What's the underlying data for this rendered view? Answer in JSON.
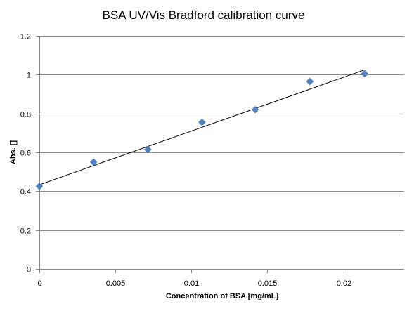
{
  "chart_data": {
    "type": "scatter",
    "title": "BSA UV/Vis Bradford calibration curve",
    "xlabel": "Concentration of BSA [mg/mL]",
    "ylabel": "Abs. []",
    "xlim": [
      0,
      0.024
    ],
    "ylim": [
      0,
      1.2
    ],
    "x_ticks": [
      0,
      0.005,
      0.01,
      0.015,
      0.02
    ],
    "x_tick_labels": [
      "0",
      "0.005",
      "0.01",
      "0.015",
      "0.02"
    ],
    "y_ticks": [
      0,
      0.2,
      0.4,
      0.6,
      0.8,
      1,
      1.2
    ],
    "y_tick_labels": [
      "0",
      "0.2",
      "0.4",
      "0.6",
      "0.8",
      "1",
      "1.2"
    ],
    "grid": "horizontal major gridlines",
    "legend": "none",
    "marker": "diamond",
    "colors": {
      "marker": "#4f81bd",
      "trendline": "#000000",
      "grid": "#868686"
    },
    "series": [
      {
        "x": [
          0,
          0.00357,
          0.00714,
          0.0107,
          0.0142,
          0.0178,
          0.0214
        ],
        "y": [
          0.425,
          0.55,
          0.615,
          0.755,
          0.82,
          0.965,
          1.005
        ]
      }
    ],
    "trendline": {
      "type": "linear",
      "x": [
        0,
        0.0214
      ],
      "y": [
        0.433,
        1.025
      ]
    }
  }
}
